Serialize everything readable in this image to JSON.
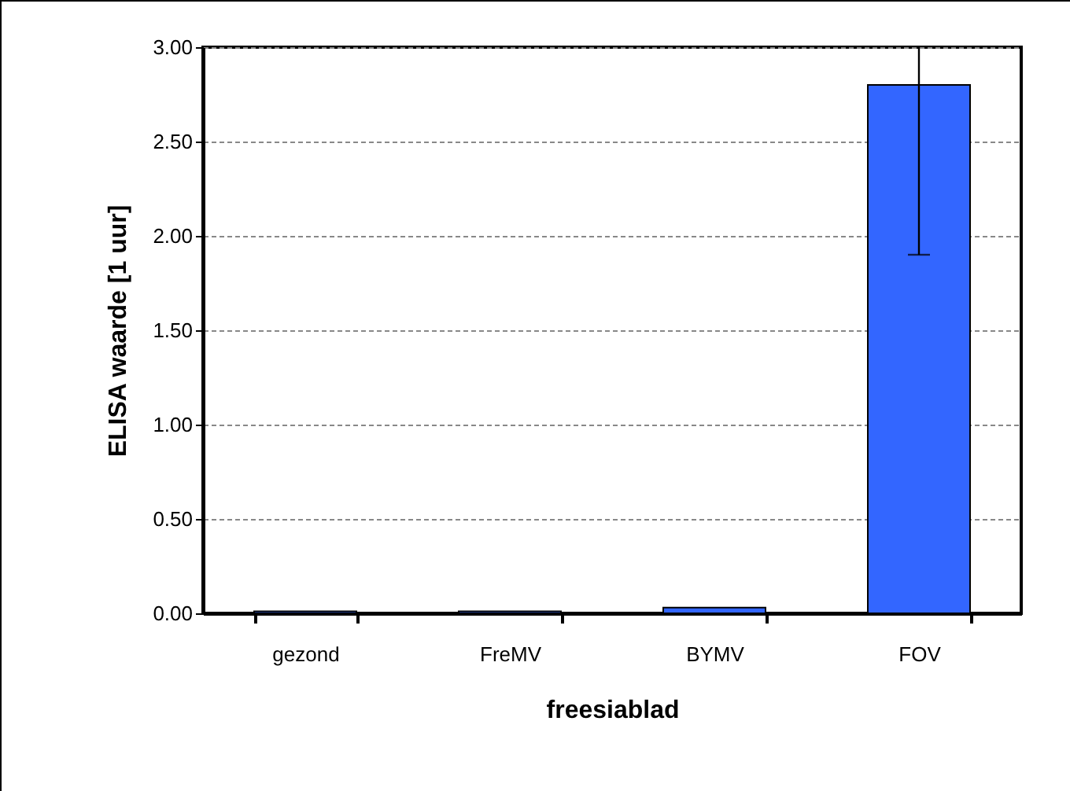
{
  "chart_data": {
    "type": "bar",
    "xlabel": "freesiablad",
    "ylabel": "ELISA waarde [1 uur]",
    "categories": [
      "gezond",
      "FreMV",
      "BYMV",
      "FOV"
    ],
    "values": [
      0.01,
      0.01,
      0.03,
      2.8
    ],
    "errors": [
      null,
      null,
      null,
      [
        1.9,
        3.0
      ]
    ],
    "color": "#3366ff",
    "ylim": [
      0,
      3
    ],
    "yticks": [
      {
        "value": 0,
        "label": "0.00"
      },
      {
        "value": 0.5,
        "label": "0.50"
      },
      {
        "value": 1,
        "label": "1.00"
      },
      {
        "value": 1.5,
        "label": "1.50"
      },
      {
        "value": 2,
        "label": "2.00"
      },
      {
        "value": 2.5,
        "label": "2.50"
      },
      {
        "value": 3,
        "label": "3.00"
      }
    ],
    "grid": "y"
  }
}
